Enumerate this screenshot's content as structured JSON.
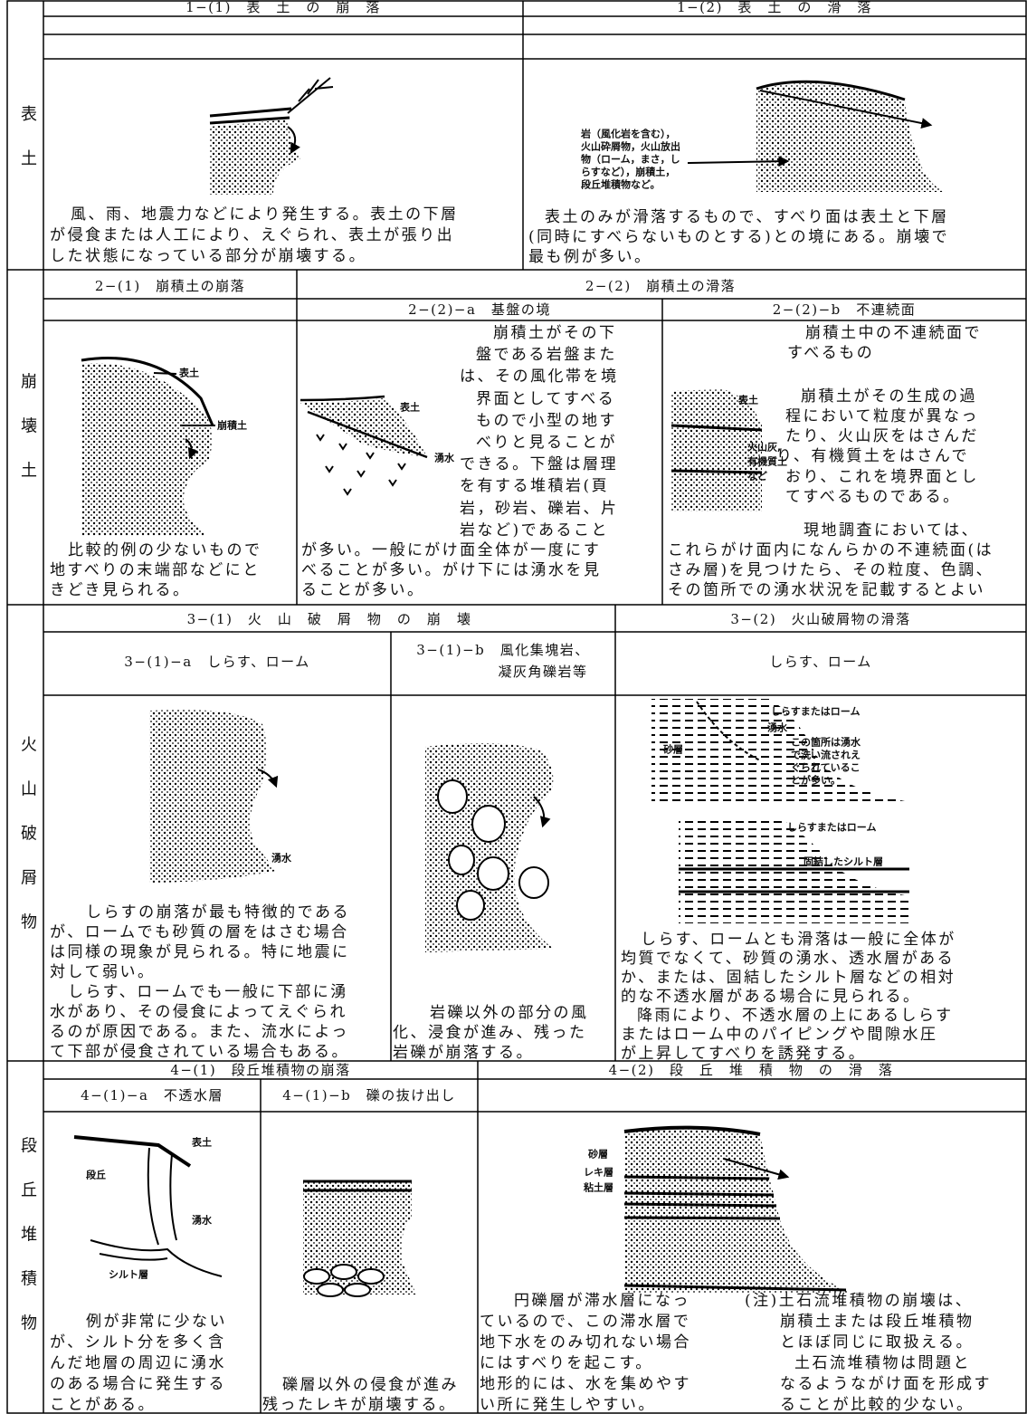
{
  "sections": [
    {
      "label": "表土",
      "headers": [
        "1−(1)　表　土　の　崩　落",
        "1−(2)　表　土　の　滑　落"
      ],
      "figure_labels": [
        "岩（風化岩を含む），",
        "火山砕屑物，火山放出",
        "物（ローム，まさ，し",
        "らすなど），崩積土，",
        "段丘堆積物など。"
      ],
      "texts": [
        [
          "風、雨、地震力などにより発生する。表土の下層",
          "が侵食または人工により、えぐられ、表土が張り出",
          "した状態になっている部分が崩壊する。"
        ],
        [
          "表土のみが滑落するもので、すべり面は表土と下層",
          "(同時にすべらないものとする)との境にある。崩壊で",
          "最も例が多い。"
        ]
      ]
    },
    {
      "label": "崩壊土",
      "headers": [
        "2−(1)　崩積土の崩落",
        "2−(2)　崩積土の滑落"
      ],
      "subheaders": [
        "2−(2)−a　基盤の境",
        "2−(2)−b　不連続面"
      ],
      "figure_labels": [
        "表土",
        "崩積土",
        "表土",
        "湧水",
        "表土",
        "火山灰,",
        "有機質土",
        "など"
      ],
      "texts": [
        [
          "比較的例の少ないもので",
          "地すべりの末端部などにと",
          "きどき見られる。"
        ],
        [
          "崩積土がその下",
          "盤である岩盤また",
          "は、その風化帯を境",
          "界面としてすべる",
          "もので小型の地す",
          "べりと見ることが",
          "できる。下盤は層理",
          "を有する堆積岩(頁",
          "岩，砂岩、礫岩、片",
          "岩など)であること",
          "が多い。一般にがけ面全体が一度にす",
          "べることが多い。がけ下には湧水を見",
          "ることが多い。"
        ],
        [
          "崩積土中の不連続面で",
          "すべるもの",
          "崩積土がその生成の過",
          "程において粒度が異なっ",
          "たり、火山灰をはさんだ",
          "り、有機質土をはさんで",
          "おり、これを境界面とし",
          "てすべるものである。",
          "現地調査においては、",
          "これらがけ面内になんらかの不連続面(は",
          "さみ層)を見つけたら、その粒度、色調、",
          "その箇所での湧水状況を記載するとよい"
        ]
      ]
    },
    {
      "label": "火山破屑物",
      "headers": [
        "3−(1)　火　山　破　屑　物　の　崩　壊",
        "3−(2)　火山破屑物の滑落"
      ],
      "subheaders": [
        "3−(1)−a　しらす、ローム",
        "3−(1)−b　風化集塊岩、",
        "凝灰角礫岩等",
        "しらす、ローム"
      ],
      "figure_labels": [
        "湧水",
        "しらすまたはローム",
        "湧水",
        "この箇所は湧水",
        "で洗い流されえ",
        "ぐられているこ",
        "とが多い。",
        "砂層",
        "しらすまたはローム",
        "固結したシルト層"
      ],
      "texts": [
        [
          "しらすの崩落が最も特徴的である",
          "が、ロームでも砂質の層をはさむ場合",
          "は同様の現象が見られる。特に地震に",
          "対して弱い。",
          "しらす、ロームでも一般に下部に湧",
          "水があり、その侵食によってえぐられ",
          "るのが原因である。また、流水によっ",
          "て下部が侵食されている場合もある。"
        ],
        [
          "岩礫以外の部分の風",
          "化、浸食が進み、残った",
          "岩礫が崩落する。"
        ],
        [
          "しらす、ロームとも滑落は一般に全体が",
          "均質でなくて、砂質の湧水、透水層がある",
          "か、または、固結したシルト層などの相対",
          "的な不透水層がある場合に見られる。",
          "降雨により、不透水層の上にあるしらす",
          "またはローム中のパイピングや間隙水圧",
          "が上昇してすべりを誘発する。"
        ]
      ]
    },
    {
      "label": "段丘堆積物",
      "headers": [
        "4−(1)　段丘堆積物の崩落",
        "4−(2)　段　丘　堆　積　物　の　滑　落"
      ],
      "subheaders": [
        "4−(1)−a　不透水層",
        "4−(1)−b　礫の抜け出し"
      ],
      "figure_labels": [
        "表土",
        "段丘",
        "湧水",
        "シルト層",
        "砂層",
        "レキ層",
        "粘土層"
      ],
      "texts": [
        [
          "例が非常に少ない",
          "が、シルト分を多く含",
          "んだ地層の周辺に湧水",
          "のある場合に発生する",
          "ことがある。"
        ],
        [
          "礫層以外の侵食が進み",
          "残ったレキが崩壊する。"
        ],
        [
          "円礫層が滞水層になっ",
          "ているので、この滞水層で",
          "地下水をのみ切れない場合",
          "にはすべりを起こす。",
          "地形的には、水を集めやす",
          "い所に発生しやすい。"
        ],
        [
          "(注)土石流堆積物の崩壊は、",
          "崩積土または段丘堆積物",
          "とほぼ同じに取扱える。",
          "土石流堆積物は問題と",
          "なるようながけ面を形成す",
          "ることが比較的少ない。"
        ]
      ]
    }
  ]
}
